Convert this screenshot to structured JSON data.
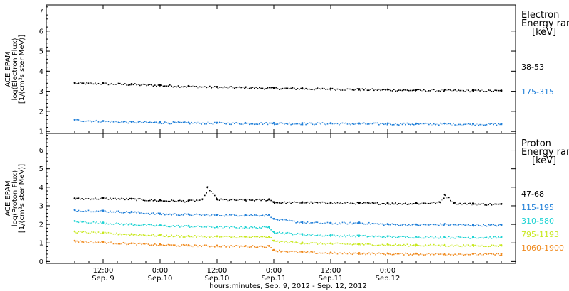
{
  "chart_data": [
    {
      "type": "scatter",
      "ylabel_lines": [
        "ACE EPAM",
        "log(Electron Flux)",
        "[1/(cm²s ster MeV)]"
      ],
      "ylim": [
        0.9,
        7.3
      ],
      "yticks": [
        1,
        2,
        3,
        4,
        5,
        6,
        7
      ],
      "legend_header": [
        "Electron",
        "Energy range",
        "[keV]"
      ],
      "series": [
        {
          "name": "38-53",
          "color": "#000000",
          "x": [
            0,
            6,
            12,
            18,
            24,
            30,
            36,
            42,
            48,
            54,
            60,
            66,
            72,
            78,
            84,
            90
          ],
          "values": [
            3.42,
            3.4,
            3.36,
            3.31,
            3.26,
            3.22,
            3.2,
            3.17,
            3.15,
            3.13,
            3.11,
            3.09,
            3.07,
            3.06,
            3.05,
            3.04
          ]
        },
        {
          "name": "175-315",
          "color": "#1e7ed8",
          "x": [
            0,
            6,
            12,
            18,
            24,
            30,
            36,
            42,
            48,
            54,
            60,
            66,
            72,
            78,
            84,
            90
          ],
          "values": [
            1.58,
            1.52,
            1.48,
            1.46,
            1.44,
            1.43,
            1.42,
            1.42,
            1.41,
            1.41,
            1.4,
            1.4,
            1.39,
            1.39,
            1.38,
            1.38
          ]
        }
      ]
    },
    {
      "type": "scatter",
      "ylabel_lines": [
        "ACE EPAM",
        "log(Proton Flux)",
        "[1/(cm²s ster MeV)]"
      ],
      "ylim": [
        -0.1,
        6.9
      ],
      "yticks": [
        0,
        1,
        2,
        3,
        4,
        5,
        6
      ],
      "legend_header": [
        "Proton",
        "Energy range",
        "[keV]"
      ],
      "series": [
        {
          "name": "47-68",
          "color": "#000000",
          "x": [
            0,
            6,
            12,
            18,
            24,
            27,
            28,
            30,
            36,
            41,
            42,
            48,
            54,
            60,
            66,
            72,
            77,
            78,
            80,
            84,
            90
          ],
          "values": [
            3.4,
            3.42,
            3.38,
            3.3,
            3.28,
            3.35,
            4.0,
            3.35,
            3.33,
            3.35,
            3.2,
            3.2,
            3.18,
            3.16,
            3.15,
            3.15,
            3.2,
            3.6,
            3.15,
            3.12,
            3.1
          ]
        },
        {
          "name": "115-195",
          "color": "#1e7ed8",
          "x": [
            0,
            6,
            12,
            18,
            24,
            30,
            36,
            41,
            42,
            48,
            54,
            60,
            66,
            72,
            78,
            84,
            90
          ],
          "values": [
            2.78,
            2.74,
            2.68,
            2.58,
            2.55,
            2.52,
            2.52,
            2.52,
            2.3,
            2.12,
            2.08,
            2.1,
            2.02,
            2.0,
            2.02,
            1.98,
            1.98
          ]
        },
        {
          "name": "310-580",
          "color": "#1fd3d3",
          "x": [
            0,
            6,
            12,
            18,
            24,
            30,
            36,
            41,
            42,
            48,
            54,
            60,
            66,
            72,
            78,
            84,
            90
          ],
          "values": [
            2.18,
            2.1,
            2.02,
            1.95,
            1.92,
            1.88,
            1.86,
            1.86,
            1.6,
            1.48,
            1.42,
            1.4,
            1.36,
            1.34,
            1.33,
            1.32,
            1.32
          ]
        },
        {
          "name": "795-1193",
          "color": "#c8e81e",
          "x": [
            0,
            6,
            12,
            18,
            24,
            30,
            36,
            41,
            42,
            48,
            54,
            60,
            66,
            72,
            78,
            84,
            90
          ],
          "values": [
            1.62,
            1.55,
            1.48,
            1.42,
            1.38,
            1.36,
            1.34,
            1.34,
            1.12,
            1.02,
            0.98,
            0.95,
            0.92,
            0.9,
            0.89,
            0.88,
            0.88
          ]
        },
        {
          "name": "1060-1900",
          "color": "#f08a1e",
          "x": [
            0,
            6,
            12,
            18,
            24,
            30,
            36,
            41,
            42,
            48,
            54,
            60,
            66,
            72,
            78,
            84,
            90
          ],
          "values": [
            1.12,
            1.05,
            0.98,
            0.92,
            0.88,
            0.86,
            0.84,
            0.84,
            0.62,
            0.52,
            0.48,
            0.46,
            0.44,
            0.43,
            0.42,
            0.42,
            0.41
          ]
        }
      ]
    }
  ],
  "x_axis": {
    "xlim": [
      -6,
      93
    ],
    "ticks": [
      {
        "x": 6,
        "top": "12:00",
        "bottom": "Sep. 9"
      },
      {
        "x": 18,
        "top": "0:00",
        "bottom": "Sep.10"
      },
      {
        "x": 30,
        "top": "12:00",
        "bottom": "Sep.10"
      },
      {
        "x": 42,
        "top": "0:00",
        "bottom": "Sep.11"
      },
      {
        "x": 54,
        "top": "12:00",
        "bottom": "Sep.11"
      },
      {
        "x": 66,
        "top": "0:00",
        "bottom": "Sep.12"
      }
    ],
    "title": "hours:minutes, Sep.  9, 2012 - Sep. 12, 2012"
  }
}
